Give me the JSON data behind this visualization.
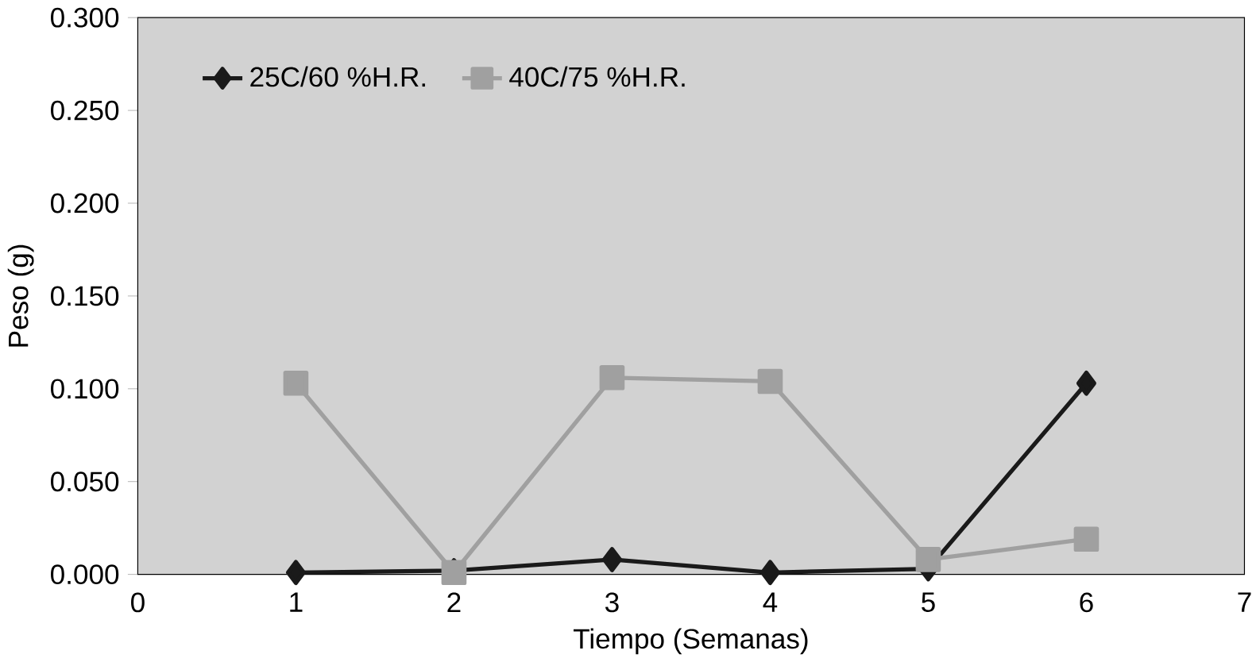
{
  "chart_data": {
    "type": "line",
    "xlabel": "Tiempo (Semanas)",
    "ylabel": "Peso (g)",
    "x": [
      1,
      2,
      3,
      4,
      5,
      6
    ],
    "series": [
      {
        "name": "25C/60 %H.R.",
        "color": "#1a1a1a",
        "values": [
          0.001,
          0.002,
          0.008,
          0.001,
          0.003,
          0.103
        ],
        "marker": "diamond"
      },
      {
        "name": "40C/75 %H.R.",
        "color": "#a0a0a0",
        "values": [
          0.103,
          0.001,
          0.106,
          0.104,
          0.008,
          0.019
        ],
        "marker": "square"
      }
    ],
    "xlim": [
      0,
      7
    ],
    "xticks": [
      0,
      1,
      2,
      3,
      4,
      5,
      6,
      7
    ],
    "ylim": [
      0,
      0.3
    ],
    "yticks": [
      {
        "value": 0,
        "label": "0.000"
      },
      {
        "value": 0.05,
        "label": "0.050"
      },
      {
        "value": 0.1,
        "label": "0.100"
      },
      {
        "value": 0.15,
        "label": "0.150"
      },
      {
        "value": 0.2,
        "label": "0.200"
      },
      {
        "value": 0.25,
        "label": "0.250"
      },
      {
        "value": 0.3,
        "label": "0.300"
      }
    ],
    "legend": "top left"
  }
}
